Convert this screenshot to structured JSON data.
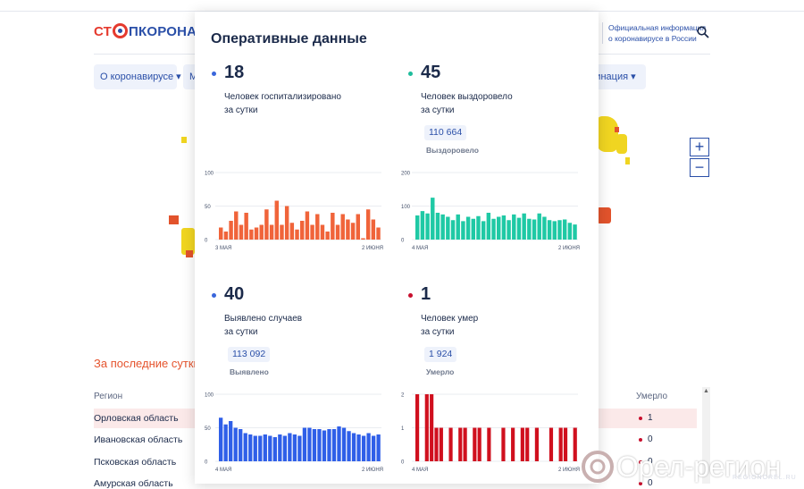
{
  "header": {
    "logo_st": "СТ",
    "logo_rest": "ПКОРОНАВИ",
    "official_info": "Официальная информация о коронавирусе в России"
  },
  "nav": {
    "about": "О коронавирусе ▾",
    "m": "М",
    "vaccination": "цинация ▾"
  },
  "map": {
    "zoom_in": "+",
    "zoom_out": "−"
  },
  "table": {
    "section_title": "За последние сутки",
    "col_region": "Регион",
    "col_died": "Умерло",
    "rows": [
      {
        "region": "Орловская область",
        "died": "1"
      },
      {
        "region": "Ивановская область",
        "died": "0"
      },
      {
        "region": "Псковская область",
        "died": "0"
      },
      {
        "region": "Амурская область",
        "died": "0"
      }
    ]
  },
  "panel": {
    "title": "Оперативные данные",
    "cards": [
      {
        "value": "18",
        "label1": "Человек госпитализировано",
        "label2": "за сутки",
        "dot_color": "#3a66db",
        "bar_color": "#f0643a",
        "yticks": [
          "100",
          "50",
          "0"
        ],
        "ymax": 100,
        "xstart": "3 мая",
        "xend": "2 июня"
      },
      {
        "value": "45",
        "label1": "Человек выздоровело",
        "label2": "за сутки",
        "total": "110 664",
        "total_label": "Выздоровело",
        "dot_color": "#1fbc9c",
        "bar_color": "#1fc9a5",
        "yticks": [
          "200",
          "100",
          "0"
        ],
        "ymax": 200,
        "xstart": "4 мая",
        "xend": "2 июня"
      },
      {
        "value": "40",
        "label1": "Выявлено случаев",
        "label2": "за сутки",
        "total": "113 092",
        "total_label": "Выявлено",
        "dot_color": "#3a66db",
        "bar_color": "#2f5fe8",
        "yticks": [
          "100",
          "50",
          "0"
        ],
        "ymax": 100,
        "xstart": "4 мая",
        "xend": "2 июня"
      },
      {
        "value": "1",
        "label1": "Человек умер",
        "label2": "за сутки",
        "total": "1 924",
        "total_label": "Умерло",
        "dot_color": "#c8102e",
        "bar_color": "#d0101e",
        "yticks": [
          "2",
          "1",
          "0"
        ],
        "ymax": 2,
        "xstart": "4 мая",
        "xend": "2 июня"
      }
    ]
  },
  "chart_data": [
    {
      "type": "bar",
      "title": "",
      "ylim": [
        0,
        100
      ],
      "x_first": "3 мая",
      "x_last": "2 июня",
      "values": [
        18,
        12,
        28,
        42,
        22,
        40,
        15,
        18,
        22,
        45,
        22,
        58,
        22,
        50,
        25,
        15,
        28,
        42,
        22,
        38,
        22,
        12,
        40,
        22,
        38,
        30,
        25,
        38,
        2,
        45,
        30,
        18
      ]
    },
    {
      "type": "bar",
      "title": "",
      "ylim": [
        0,
        200
      ],
      "x_first": "4 мая",
      "x_last": "2 июня",
      "values": [
        72,
        85,
        78,
        125,
        80,
        75,
        68,
        58,
        75,
        55,
        68,
        62,
        70,
        55,
        80,
        62,
        68,
        72,
        58,
        75,
        65,
        78,
        62,
        60,
        78,
        68,
        58,
        55,
        58,
        60,
        50,
        45
      ]
    },
    {
      "type": "bar",
      "title": "",
      "ylim": [
        0,
        100
      ],
      "x_first": "4 мая",
      "x_last": "2 июня",
      "values": [
        65,
        55,
        60,
        50,
        48,
        42,
        40,
        38,
        38,
        40,
        38,
        36,
        40,
        38,
        42,
        40,
        38,
        50,
        50,
        48,
        48,
        46,
        48,
        48,
        52,
        50,
        45,
        42,
        40,
        38,
        42,
        38,
        40
      ]
    },
    {
      "type": "bar",
      "title": "",
      "ylim": [
        0,
        2
      ],
      "x_first": "4 мая",
      "x_last": "2 июня",
      "values": [
        2,
        0,
        2,
        2,
        1,
        1,
        0,
        1,
        0,
        1,
        1,
        0,
        1,
        1,
        0,
        1,
        0,
        0,
        1,
        0,
        1,
        0,
        1,
        1,
        0,
        1,
        0,
        0,
        1,
        0,
        1,
        1,
        0,
        1
      ]
    }
  ],
  "watermark": {
    "text": "Орел-регион",
    "sub": "REGIONOREL.RU"
  }
}
